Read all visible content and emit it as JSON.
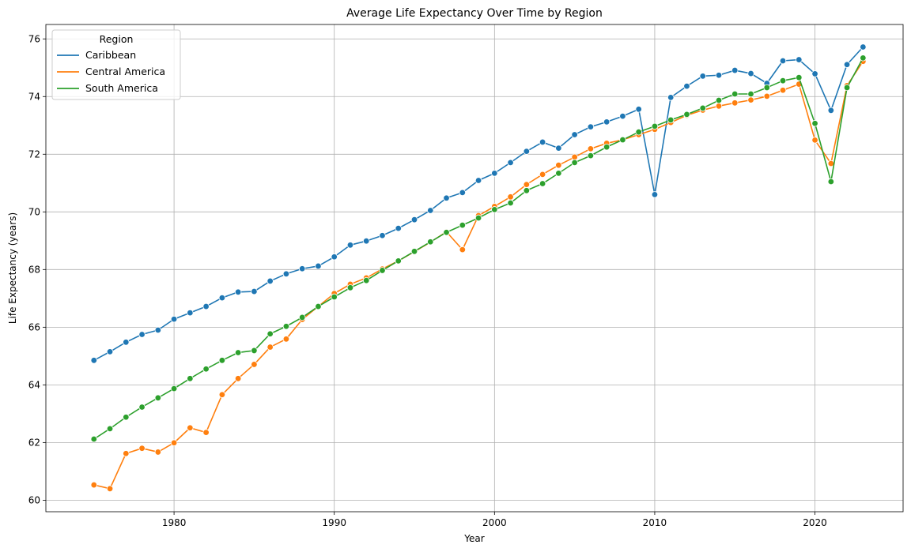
{
  "chart_data": {
    "type": "line",
    "title": "Average Life Expectancy Over Time by Region",
    "xlabel": "Year",
    "ylabel": "Life Expectancy (years)",
    "xlim": [
      1972,
      2025.5
    ],
    "ylim": [
      59.6,
      76.5
    ],
    "x_ticks": [
      1980,
      1990,
      2000,
      2010,
      2020
    ],
    "y_ticks": [
      60,
      62,
      64,
      66,
      68,
      70,
      72,
      74,
      76
    ],
    "grid": true,
    "legend": {
      "title": "Region",
      "position": "top-left"
    },
    "x": [
      1975,
      1976,
      1977,
      1978,
      1979,
      1980,
      1981,
      1982,
      1983,
      1984,
      1985,
      1986,
      1987,
      1988,
      1989,
      1990,
      1991,
      1992,
      1993,
      1994,
      1995,
      1996,
      1997,
      1998,
      1999,
      2000,
      2001,
      2002,
      2003,
      2004,
      2005,
      2006,
      2007,
      2008,
      2009,
      2010,
      2011,
      2012,
      2013,
      2014,
      2015,
      2016,
      2017,
      2018,
      2019,
      2020,
      2021,
      2022,
      2023
    ],
    "series": [
      {
        "name": "Caribbean",
        "color": "#1f77b4",
        "values": [
          64.85,
          65.15,
          65.48,
          65.75,
          65.9,
          66.28,
          66.5,
          66.72,
          67.02,
          67.22,
          67.24,
          67.6,
          67.85,
          68.03,
          68.12,
          68.44,
          68.85,
          68.99,
          69.18,
          69.43,
          69.73,
          70.05,
          70.48,
          70.67,
          71.09,
          71.34,
          71.71,
          72.1,
          72.42,
          72.21,
          72.68,
          72.95,
          73.12,
          73.32,
          73.56,
          70.6,
          73.97,
          74.36,
          74.71,
          74.74,
          74.91,
          74.8,
          74.46,
          75.24,
          75.28,
          74.79,
          73.52,
          75.11,
          75.72
        ]
      },
      {
        "name": "Central America",
        "color": "#ff7f0e",
        "values": [
          60.53,
          60.4,
          61.62,
          61.8,
          61.67,
          61.99,
          62.51,
          62.35,
          63.66,
          64.22,
          64.71,
          65.31,
          65.59,
          66.27,
          66.72,
          67.17,
          67.49,
          67.71,
          68.02,
          68.3,
          68.62,
          68.95,
          69.31,
          68.69,
          69.87,
          70.19,
          70.52,
          70.95,
          71.3,
          71.62,
          71.9,
          72.19,
          72.38,
          72.5,
          72.68,
          72.86,
          73.1,
          73.35,
          73.53,
          73.67,
          73.78,
          73.88,
          74.01,
          74.22,
          74.43,
          72.49,
          71.68,
          74.38,
          75.22
        ]
      },
      {
        "name": "South America",
        "color": "#2ca02c",
        "values": [
          62.12,
          62.48,
          62.88,
          63.23,
          63.55,
          63.87,
          64.22,
          64.55,
          64.85,
          65.12,
          65.19,
          65.77,
          66.03,
          66.34,
          66.72,
          67.05,
          67.37,
          67.62,
          67.97,
          68.3,
          68.63,
          68.96,
          69.29,
          69.54,
          69.79,
          70.08,
          70.31,
          70.74,
          70.98,
          71.34,
          71.71,
          71.95,
          72.25,
          72.5,
          72.77,
          72.97,
          73.19,
          73.38,
          73.6,
          73.87,
          74.09,
          74.09,
          74.31,
          74.55,
          74.66,
          73.07,
          71.05,
          74.31,
          75.34
        ]
      }
    ]
  }
}
